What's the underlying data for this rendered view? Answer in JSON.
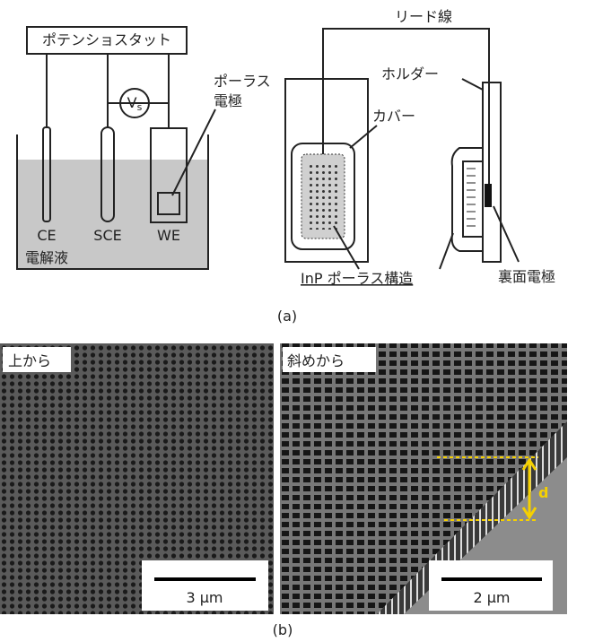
{
  "figure_a": {
    "potentiostat": "ポテンショスタット",
    "voltage": {
      "main": "V",
      "sub": "s"
    },
    "porous_electrode": [
      "ポーラス",
      "電極"
    ],
    "electrodes": [
      "CE",
      "SCE",
      "WE"
    ],
    "electrolyte": "電解液",
    "lead_wire": "リード線",
    "holder": "ホルダー",
    "cover": "カバー",
    "porous_structure": "InP ポーラス構造",
    "back_electrode": "裏面電極",
    "caption": "(a)"
  },
  "figure_b": {
    "top_view": {
      "label": "上から",
      "scale": "3 μm"
    },
    "oblique_view": {
      "label": "斜めから",
      "scale": "2 μm",
      "depth": "d"
    },
    "caption": "(b)"
  }
}
